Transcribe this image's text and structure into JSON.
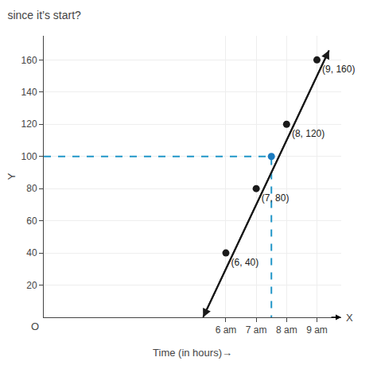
{
  "chart_data": {
    "type": "scatter",
    "title": "since it’s start?",
    "x_label": "Time (in hours)→",
    "y_label": "Y",
    "series": [
      {
        "type": "line",
        "line_style": "solid",
        "marker": "arrow",
        "color": "#1a1a1a",
        "x": [
          5.25,
          9.4
        ],
        "values": [
          0,
          166
        ]
      },
      {
        "type": "line",
        "line_style": "dashed",
        "color": "#2196c8",
        "x": [
          0,
          7.5,
          7.5
        ],
        "values": [
          100,
          100,
          0
        ]
      },
      {
        "type": "scatter",
        "marker": "circle",
        "color": "#1a1a1a",
        "x": [
          6,
          7,
          8,
          9
        ],
        "values": [
          40,
          80,
          120,
          160
        ],
        "value_labels": [
          "(6, 40)",
          "(7, 80)",
          "(8, 120)",
          "(9, 160)"
        ]
      },
      {
        "type": "scatter",
        "marker": "circle",
        "color": "#1a7abf",
        "x": [
          7.5
        ],
        "values": [
          100
        ]
      }
    ],
    "annotations": [
      "O",
      "X"
    ],
    "xlim": [
      0,
      9.8
    ],
    "xticks": [
      {
        "value": 6,
        "label": "6 am"
      },
      {
        "value": 7,
        "label": "7 am"
      },
      {
        "value": 8,
        "label": "8 am"
      },
      {
        "value": 9,
        "label": "9 am"
      }
    ],
    "ylim": [
      0,
      175
    ],
    "yticks": [
      20,
      40,
      60,
      80,
      100,
      120,
      140,
      160
    ],
    "grid": true
  }
}
